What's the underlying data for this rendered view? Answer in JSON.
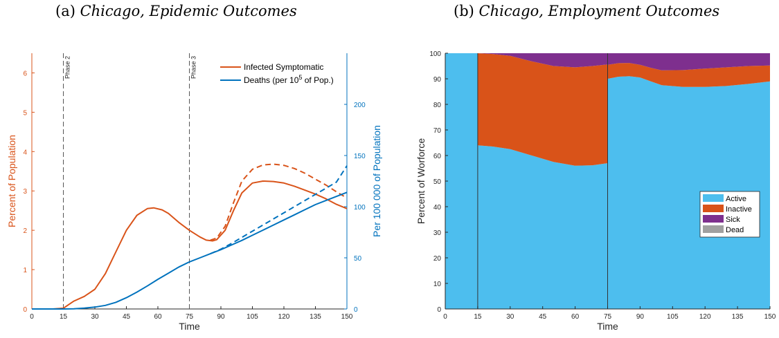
{
  "panel_a_title": {
    "label": "(a)",
    "text": "Chicago, Epidemic Outcomes"
  },
  "panel_b_title": {
    "label": "(b)",
    "text": "Chicago, Employment Outcomes"
  },
  "colors": {
    "infected": "#d95319",
    "deaths": "#0072bd",
    "active": "#4dbeee",
    "inactive": "#d95319",
    "sick": "#7e2f8e",
    "dead": "#a0a0a0",
    "axis": "#262626"
  },
  "chart_data": [
    {
      "type": "line",
      "xlabel": "Time",
      "ylabel": "Percent of Population",
      "y2label": "Per 100 000 of Population",
      "xlim": [
        0,
        150
      ],
      "ylim": [
        0,
        6.5
      ],
      "y2lim": [
        0,
        250
      ],
      "xticks": [
        0,
        15,
        30,
        45,
        60,
        75,
        90,
        105,
        120,
        135,
        150
      ],
      "yticks": [
        0,
        1,
        2,
        3,
        4,
        5,
        6
      ],
      "y2ticks": [
        0,
        50,
        100,
        150,
        200
      ],
      "phase_lines": [
        {
          "x": 15,
          "label": "Phase 2"
        },
        {
          "x": 75,
          "label": "Phase 3"
        }
      ],
      "legend": {
        "position": "top-right",
        "infected_label": "Infected Symptomatic",
        "deaths_label_pre": "Deaths (per 10",
        "deaths_label_sup": "5",
        "deaths_label_post": " of Pop.)"
      },
      "series": [
        {
          "name": "Infected Symptomatic",
          "axis": "left",
          "style": "solid",
          "x": [
            0,
            10,
            15,
            20,
            25,
            30,
            35,
            40,
            45,
            50,
            55,
            58,
            62,
            65,
            70,
            75,
            80,
            83,
            86,
            88,
            92,
            96,
            100,
            105,
            110,
            115,
            120,
            125,
            130,
            135,
            140,
            145,
            150
          ],
          "values": [
            0,
            0,
            0.02,
            0.2,
            0.32,
            0.5,
            0.9,
            1.45,
            2.0,
            2.38,
            2.55,
            2.57,
            2.52,
            2.43,
            2.2,
            2.0,
            1.83,
            1.75,
            1.73,
            1.76,
            2.0,
            2.5,
            2.95,
            3.2,
            3.25,
            3.24,
            3.2,
            3.12,
            3.02,
            2.92,
            2.8,
            2.66,
            2.55
          ]
        },
        {
          "name": "Infected Symptomatic (dashed scenario)",
          "axis": "left",
          "style": "dashed",
          "x": [
            85,
            88,
            92,
            96,
            100,
            105,
            110,
            115,
            120,
            125,
            130,
            135,
            140,
            145,
            150
          ],
          "values": [
            1.75,
            1.8,
            2.1,
            2.7,
            3.25,
            3.55,
            3.66,
            3.68,
            3.65,
            3.57,
            3.45,
            3.3,
            3.15,
            2.98,
            2.82
          ]
        },
        {
          "name": "Deaths (per 10^5 of Pop.)",
          "axis": "right",
          "style": "solid",
          "x": [
            0,
            15,
            20,
            25,
            30,
            35,
            40,
            45,
            50,
            55,
            60,
            65,
            70,
            75,
            80,
            85,
            90,
            95,
            100,
            105,
            110,
            115,
            120,
            125,
            130,
            135,
            140,
            145,
            150
          ],
          "values": [
            0,
            0,
            0.2,
            0.8,
            1.8,
            3.5,
            6.5,
            11,
            16.5,
            22.5,
            29,
            35,
            41,
            46,
            50,
            54,
            58,
            62.5,
            67,
            72,
            77,
            82,
            87,
            92,
            97,
            102,
            106,
            110,
            114
          ]
        },
        {
          "name": "Deaths (dashed scenario)",
          "axis": "right",
          "style": "dashed",
          "x": [
            85,
            90,
            95,
            100,
            105,
            110,
            115,
            120,
            125,
            130,
            135,
            140,
            145,
            150
          ],
          "values": [
            54,
            58.5,
            64,
            70,
            76,
            82,
            88,
            94,
            100,
            106,
            112,
            118,
            124,
            140
          ]
        }
      ]
    },
    {
      "type": "area",
      "stacked": true,
      "xlabel": "Time",
      "ylabel": "Percent of Worforce",
      "xlim": [
        0,
        150
      ],
      "ylim": [
        0,
        100
      ],
      "xticks": [
        0,
        15,
        30,
        45,
        60,
        75,
        90,
        105,
        120,
        135,
        150
      ],
      "yticks": [
        0,
        10,
        20,
        30,
        40,
        50,
        60,
        70,
        80,
        90,
        100
      ],
      "phase_lines": [
        15,
        75
      ],
      "legend": {
        "position": "center-right"
      },
      "x": [
        0,
        14.9,
        15,
        22,
        30,
        40,
        50,
        60,
        68,
        74.9,
        75,
        80,
        85,
        90,
        95,
        100,
        110,
        120,
        130,
        140,
        150
      ],
      "series": [
        {
          "name": "Active",
          "values": [
            100,
            100,
            64,
            63.5,
            62.5,
            60,
            57.5,
            56,
            56.2,
            57,
            90,
            90.8,
            91,
            90.5,
            89,
            87.5,
            86.8,
            86.8,
            87.2,
            88,
            89
          ]
        },
        {
          "name": "Inactive",
          "values": [
            0,
            0,
            36,
            36.2,
            36.5,
            36.8,
            37.5,
            38.5,
            38.8,
            38.6,
            5.5,
            5.3,
            5.2,
            5,
            5.3,
            5.8,
            6.6,
            7.2,
            7.3,
            7,
            6.2
          ]
        },
        {
          "name": "Sick",
          "values": [
            0,
            0,
            0,
            0.3,
            1,
            3.2,
            5,
            5.5,
            5,
            4.4,
            4.5,
            3.9,
            3.8,
            4.5,
            5.7,
            6.7,
            6.6,
            6,
            5.5,
            5,
            4.8
          ]
        },
        {
          "name": "Dead",
          "values": [
            0,
            0,
            0,
            0,
            0,
            0,
            0,
            0,
            0,
            0,
            0,
            0,
            0,
            0,
            0,
            0,
            0,
            0,
            0,
            0,
            0
          ]
        }
      ]
    }
  ]
}
